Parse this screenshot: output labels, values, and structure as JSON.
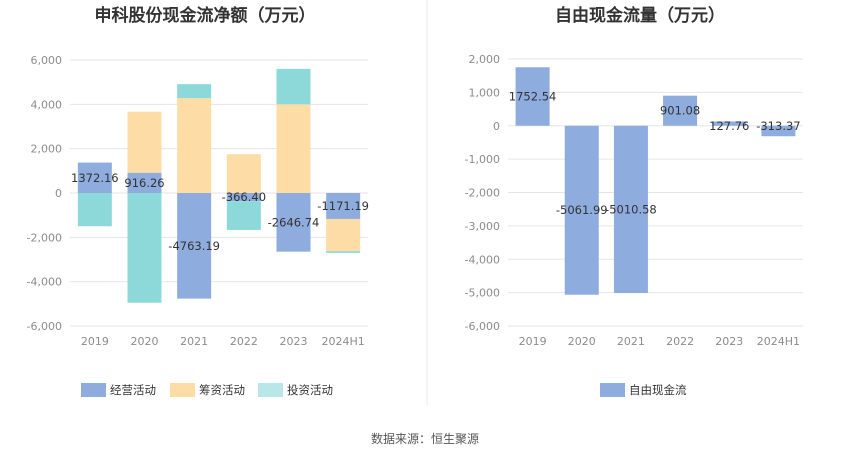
{
  "colors": {
    "operating": "#8eacde",
    "financing": "#fedca5",
    "investing": "#8dd9da",
    "fcf": "#8eacde",
    "legend_investing": "#b9e6e9",
    "grid": "#e6e6e6",
    "divider": "#e8e8e8"
  },
  "source": "数据来源：恒生聚源",
  "chart_data": [
    {
      "type": "bar",
      "stacked": true,
      "title": "申科股份现金流净额（万元）",
      "categories": [
        "2019",
        "2020",
        "2021",
        "2022",
        "2023",
        "2024H1"
      ],
      "ylim": [
        -6000,
        6000
      ],
      "yticks": [
        -6000,
        -4000,
        -2000,
        0,
        2000,
        4000,
        6000
      ],
      "ytick_labels": [
        "-6,000",
        "-4,000",
        "-2,000",
        "0",
        "2,000",
        "4,000",
        "6,000"
      ],
      "grid": true,
      "legend_position": "bottom",
      "series": [
        {
          "name": "经营活动",
          "color_key": "operating",
          "values": [
            1372.16,
            916.26,
            -4763.19,
            -366.4,
            -2646.74,
            -1171.19
          ],
          "labels": [
            "1372.16",
            "916.26",
            "-4763.19",
            "-366.40",
            "-2646.74",
            "-1171.19"
          ]
        },
        {
          "name": "筹资活动",
          "color_key": "financing",
          "values": [
            0,
            2750,
            4280,
            1750,
            4000,
            -1450
          ]
        },
        {
          "name": "投资活动",
          "color_key": "investing",
          "values": [
            -1500,
            -4950,
            630,
            -1300,
            1600,
            -80
          ]
        }
      ]
    },
    {
      "type": "bar",
      "title": "自由现金流量（万元）",
      "categories": [
        "2019",
        "2020",
        "2021",
        "2022",
        "2023",
        "2024H1"
      ],
      "ylim": [
        -6000,
        2000
      ],
      "yticks": [
        -6000,
        -5000,
        -4000,
        -3000,
        -2000,
        -1000,
        0,
        1000,
        2000
      ],
      "ytick_labels": [
        "-6,000",
        "-5,000",
        "-4,000",
        "-3,000",
        "-2,000",
        "-1,000",
        "0",
        "1,000",
        "2,000"
      ],
      "grid": true,
      "legend_position": "bottom",
      "series": [
        {
          "name": "自由现金流",
          "color_key": "fcf",
          "values": [
            1752.54,
            -5061.99,
            -5010.58,
            901.08,
            127.76,
            -313.37
          ],
          "labels": [
            "1752.54",
            "-5061.99",
            "-5010.58",
            "901.08",
            "127.76",
            "-313.37"
          ]
        }
      ]
    }
  ]
}
